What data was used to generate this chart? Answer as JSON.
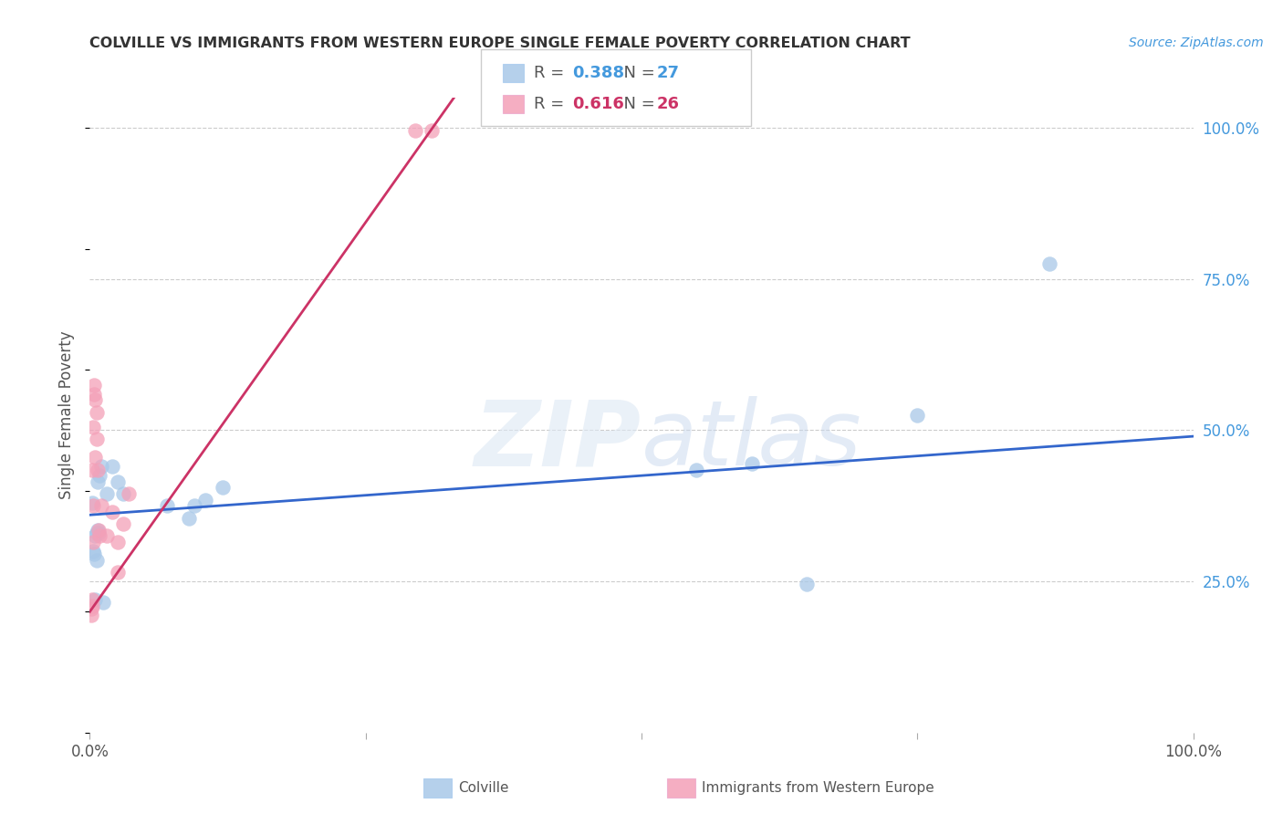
{
  "title": "COLVILLE VS IMMIGRANTS FROM WESTERN EUROPE SINGLE FEMALE POVERTY CORRELATION CHART",
  "source": "Source: ZipAtlas.com",
  "ylabel": "Single Female Poverty",
  "legend_label1": "Colville",
  "legend_label2": "Immigrants from Western Europe",
  "R1": "0.388",
  "N1": "27",
  "R2": "0.616",
  "N2": "26",
  "color_blue": "#a8c8e8",
  "color_pink": "#f4a0b8",
  "line_color_blue": "#3366cc",
  "line_color_pink": "#cc3366",
  "background_color": "#ffffff",
  "blue_points_x": [
    0.002,
    0.003,
    0.004,
    0.005,
    0.006,
    0.006,
    0.007,
    0.007,
    0.008,
    0.009,
    0.01,
    0.012,
    0.015,
    0.02,
    0.025,
    0.03,
    0.07,
    0.09,
    0.095,
    0.105,
    0.12,
    0.55,
    0.6,
    0.65,
    0.75,
    0.87,
    0.005
  ],
  "blue_points_y": [
    0.38,
    0.3,
    0.295,
    0.325,
    0.33,
    0.285,
    0.335,
    0.415,
    0.33,
    0.425,
    0.44,
    0.215,
    0.395,
    0.44,
    0.415,
    0.395,
    0.375,
    0.355,
    0.375,
    0.385,
    0.405,
    0.435,
    0.445,
    0.245,
    0.525,
    0.775,
    0.22
  ],
  "pink_points_x": [
    0.002,
    0.002,
    0.003,
    0.003,
    0.004,
    0.005,
    0.005,
    0.006,
    0.006,
    0.007,
    0.008,
    0.009,
    0.01,
    0.015,
    0.02,
    0.025,
    0.025,
    0.03,
    0.035,
    0.001,
    0.001,
    0.002,
    0.003,
    0.004,
    0.295,
    0.31
  ],
  "pink_points_y": [
    0.22,
    0.21,
    0.315,
    0.375,
    0.575,
    0.55,
    0.455,
    0.53,
    0.485,
    0.435,
    0.335,
    0.325,
    0.375,
    0.325,
    0.365,
    0.265,
    0.315,
    0.345,
    0.395,
    0.205,
    0.195,
    0.435,
    0.505,
    0.56,
    0.995,
    0.995
  ],
  "blue_line_x0": 0.0,
  "blue_line_x1": 1.0,
  "blue_line_y0": 0.36,
  "blue_line_y1": 0.49,
  "pink_line_x0": 0.0,
  "pink_line_x1": 0.33,
  "pink_line_y0": 0.2,
  "pink_line_y1": 1.05,
  "xlim": [
    0.0,
    1.0
  ],
  "ylim": [
    0.0,
    1.05
  ],
  "yticks": [
    0.25,
    0.5,
    0.75,
    1.0
  ],
  "ytick_labels": [
    "25.0%",
    "50.0%",
    "75.0%",
    "100.0%"
  ],
  "xticks": [
    0.0,
    0.25,
    0.5,
    0.75,
    1.0
  ],
  "xtick_labels_show": [
    "0.0%",
    "",
    "",
    "",
    "100.0%"
  ]
}
